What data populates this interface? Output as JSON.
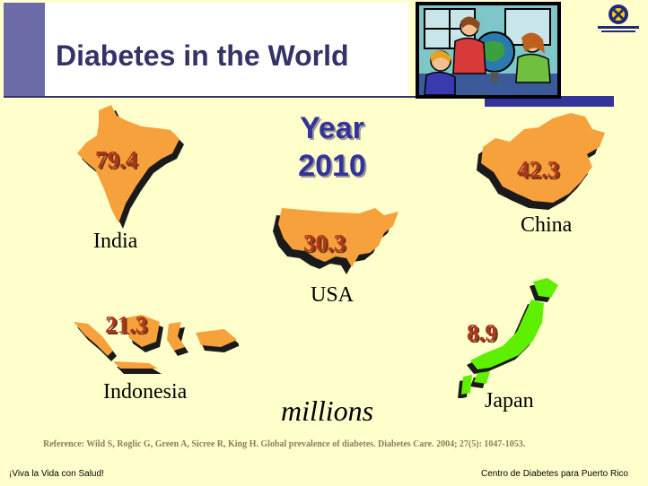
{
  "slide": {
    "title": "Diabetes in the World",
    "year_label": "Year",
    "year_value": "2010",
    "unit": "millions",
    "reference": "Reference: Wild S, Roglic G, Green A, Sicree R, King H. Global prevalence of diabetes. Diabetes Care. 2004; 27(5): 1047-1053.",
    "footer_left": "¡Viva la Vida con Salud!",
    "footer_right": "Centro de Diabetes para Puerto Rico"
  },
  "countries": [
    {
      "name": "India",
      "value": "79.4",
      "color": "#f7a13c"
    },
    {
      "name": "China",
      "value": "42.3",
      "color": "#f7a13c"
    },
    {
      "name": "USA",
      "value": "30.3",
      "color": "#f7a13c"
    },
    {
      "name": "Indonesia",
      "value": "21.3",
      "color": "#f7a13c"
    },
    {
      "name": "Japan",
      "value": "8.9",
      "color": "#5ef000"
    }
  ],
  "colors": {
    "background": "#ffffcc",
    "title": "#333366",
    "accent": "#333399",
    "value_text": "#b0351b",
    "map_shadow": "#1a1a1a"
  },
  "icons": {
    "clipart": "students-globe-clipart",
    "logo": "centro-de-diabetes-logo"
  }
}
